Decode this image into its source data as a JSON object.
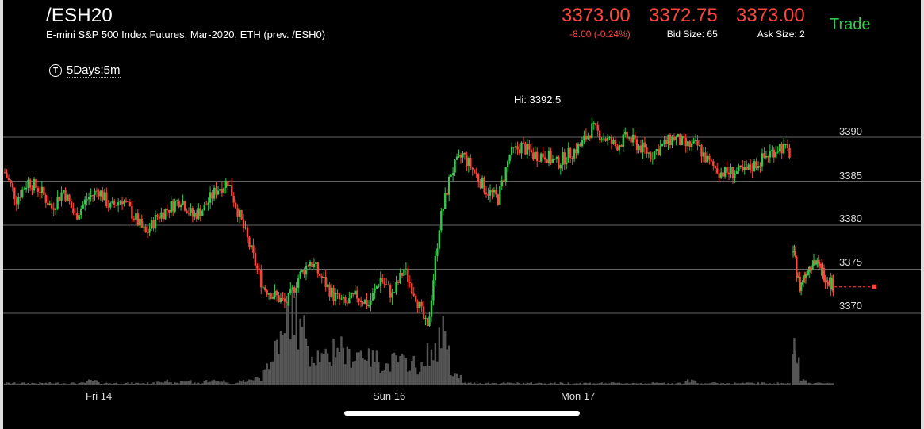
{
  "header": {
    "symbol": "/ESH20",
    "description": "E-mini S&P 500 Index Futures, Mar-2020, ETH (prev. /ESH0)",
    "timeframe": "5Days:5m",
    "timeframe_icon": "T"
  },
  "quote": {
    "last": "3373.00",
    "change": "-8.00 (-0.24%)",
    "bid": "3372.75",
    "bid_size": "Bid Size: 65",
    "ask": "3373.00",
    "ask_size": "Ask Size: 2",
    "trade_label": "Trade"
  },
  "colors": {
    "up": "#30c94a",
    "down": "#ff453a",
    "volume": "#555555",
    "grid": "#666666"
  },
  "chart_data": {
    "type": "candlestick",
    "hi_label": "Hi: 3392.5",
    "ylim": [
      3367,
      3395
    ],
    "y_ticks": [
      "3390",
      "3385",
      "3380",
      "3375",
      "3370"
    ],
    "x_labels": [
      "Fri 14",
      "Sun 16",
      "Mon 17"
    ],
    "last_price": 3373,
    "close_path": [
      3386,
      3383,
      3385,
      3384,
      3382,
      3384,
      3381,
      3383,
      3384,
      3382,
      3383,
      3381,
      3379,
      3381,
      3382,
      3383,
      3381,
      3382,
      3384,
      3385,
      3381,
      3377,
      3373,
      3372,
      3371,
      3374,
      3376,
      3374,
      3372,
      3371,
      3372,
      3371,
      3374,
      3372,
      3375,
      3372,
      3368,
      3380,
      3386,
      3388,
      3386,
      3384,
      3383,
      3388,
      3389,
      3388,
      3388,
      3387,
      3388,
      3389,
      3391,
      3390,
      3389,
      3390,
      3389,
      3388,
      3389,
      3390,
      3389,
      3389,
      3387,
      3386,
      3386,
      3386,
      3387,
      3388,
      3389,
      3388
    ],
    "close_path2": [
      3377,
      3373,
      3375,
      3376,
      3375,
      3374,
      3373
    ],
    "volume_path": [
      1,
      1,
      1,
      1,
      1,
      1,
      1,
      2,
      1,
      1,
      1,
      1,
      1,
      2,
      1,
      2,
      1,
      2,
      2,
      1,
      2,
      3,
      10,
      20,
      32,
      24,
      14,
      12,
      18,
      13,
      15,
      12,
      9,
      11,
      10,
      8,
      14,
      25,
      4,
      1,
      1,
      1,
      1,
      1,
      1,
      1,
      1,
      1,
      1,
      1,
      1,
      1,
      1,
      1,
      1,
      1,
      1,
      1,
      2,
      1,
      1,
      1,
      1,
      1,
      1,
      1,
      1,
      1
    ],
    "volume_path2": [
      16,
      2,
      1,
      1,
      1,
      1,
      1
    ]
  }
}
